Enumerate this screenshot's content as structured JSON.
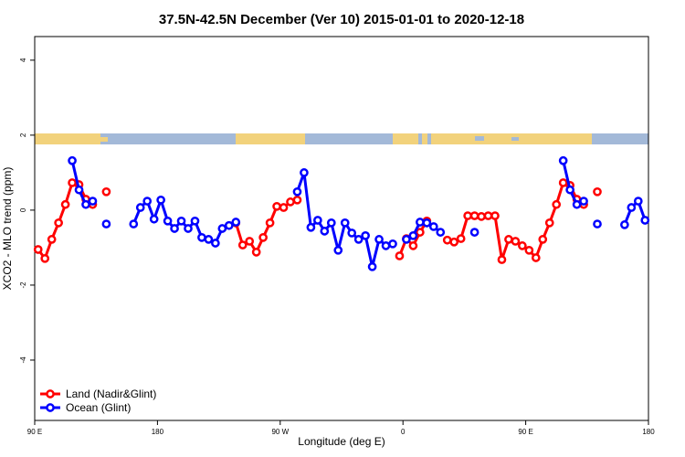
{
  "chart_data": {
    "type": "line",
    "title": "37.5N-42.5N December (Ver 10)   2015-01-01 to 2020-12-18",
    "xlabel": "Longitude (deg E)",
    "ylabel": "XCO2 - MLO trend (ppm)",
    "x": [
      92.5,
      97.5,
      102.5,
      107.5,
      112.5,
      117.5,
      122.5,
      127.5,
      132.5,
      137.5,
      142.5,
      147.5,
      152.5,
      157.5,
      162.5,
      167.5,
      172.5,
      177.5,
      182.5,
      187.5,
      192.5,
      197.5,
      202.5,
      207.5,
      212.5,
      217.5,
      222.5,
      227.5,
      232.5,
      237.5,
      242.5,
      247.5,
      252.5,
      257.5,
      262.5,
      267.5,
      272.5,
      277.5,
      282.5,
      287.5,
      292.5,
      297.5,
      302.5,
      307.5,
      312.5,
      317.5,
      322.5,
      327.5,
      332.5,
      337.5,
      342.5,
      347.5,
      352.5,
      357.5,
      362.5,
      367.5,
      372.5,
      377.5,
      382.5,
      387.5,
      392.5,
      397.5,
      402.5,
      407.5,
      412.5,
      417.5,
      422.5,
      427.5,
      432.5,
      437.5,
      442.5,
      447.5,
      452.5,
      457.5,
      462.5,
      467.5,
      472.5,
      477.5,
      482.5,
      487.5,
      492.5,
      497.5,
      502.5,
      507.5,
      512.5,
      517.5,
      522.5,
      527.5,
      532.5,
      537.5
    ],
    "series": [
      {
        "name": "Land (Nadir&Glint)",
        "color": "#ff0000",
        "values": [
          -1.05,
          -1.29,
          -0.78,
          -0.34,
          0.15,
          0.73,
          0.68,
          0.29,
          0.15,
          null,
          0.49,
          null,
          null,
          null,
          null,
          null,
          null,
          null,
          null,
          null,
          null,
          null,
          null,
          null,
          null,
          null,
          null,
          null,
          null,
          -0.34,
          -0.93,
          -0.83,
          -1.12,
          -0.73,
          -0.34,
          0.1,
          0.07,
          0.22,
          0.27,
          null,
          null,
          null,
          null,
          null,
          null,
          null,
          null,
          null,
          null,
          null,
          null,
          null,
          null,
          -1.22,
          -0.76,
          -0.95,
          -0.59,
          -0.29,
          null,
          null,
          -0.8,
          -0.85,
          -0.76,
          -0.15,
          -0.15,
          -0.17,
          -0.15,
          -0.15,
          -1.32,
          -0.78,
          -0.83,
          -0.95,
          -1.07,
          -1.27,
          -0.78,
          -0.34,
          0.15,
          0.73,
          0.66,
          0.29,
          0.15,
          null,
          0.49,
          null,
          null,
          null,
          null,
          null,
          null,
          null
        ]
      },
      {
        "name": "Ocean (Glint)",
        "color": "#0000ff",
        "values": [
          null,
          null,
          null,
          null,
          null,
          1.32,
          0.54,
          0.15,
          0.24,
          null,
          -0.37,
          null,
          null,
          null,
          -0.37,
          0.07,
          0.24,
          -0.24,
          0.27,
          -0.29,
          -0.49,
          -0.29,
          -0.49,
          -0.29,
          -0.73,
          -0.78,
          -0.88,
          -0.49,
          -0.41,
          -0.32,
          null,
          null,
          null,
          null,
          null,
          null,
          null,
          null,
          0.49,
          1.0,
          -0.46,
          -0.27,
          -0.56,
          -0.34,
          -1.07,
          -0.34,
          -0.61,
          -0.78,
          -0.68,
          -1.51,
          -0.78,
          -0.95,
          -0.9,
          null,
          -0.78,
          -0.68,
          -0.32,
          -0.34,
          -0.44,
          -0.59,
          null,
          null,
          null,
          null,
          -0.59,
          null,
          null,
          null,
          null,
          null,
          null,
          null,
          null,
          null,
          null,
          null,
          null,
          1.32,
          0.54,
          0.15,
          0.24,
          null,
          -0.37,
          null,
          null,
          null,
          -0.39,
          0.07,
          0.24,
          -0.27
        ]
      }
    ],
    "xlim": [
      90,
      540
    ],
    "xticks": [
      {
        "value": 90,
        "label": "90 E"
      },
      180,
      {
        "value": 270,
        "label": "90 W"
      },
      {
        "value": 360,
        "label": "0"
      },
      {
        "value": 450,
        "label": "90 E"
      },
      {
        "value": 540,
        "label": "180"
      }
    ],
    "ylim": [
      -5.61,
      4.63
    ],
    "yticks": [
      -4,
      -2,
      0,
      2,
      4
    ],
    "legend": "bottomleft"
  }
}
